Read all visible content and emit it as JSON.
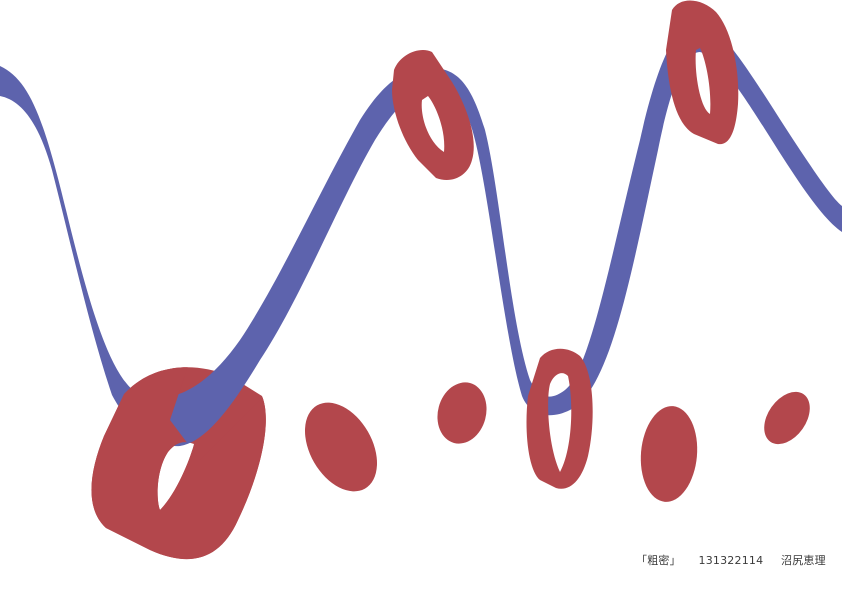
{
  "caption": {
    "title": "「粗密」",
    "student_id": "131322114",
    "author": "沼尻恵理"
  },
  "colors": {
    "ribbon": "#5d63ad",
    "rings": "#b3474c",
    "background": "#ffffff"
  }
}
